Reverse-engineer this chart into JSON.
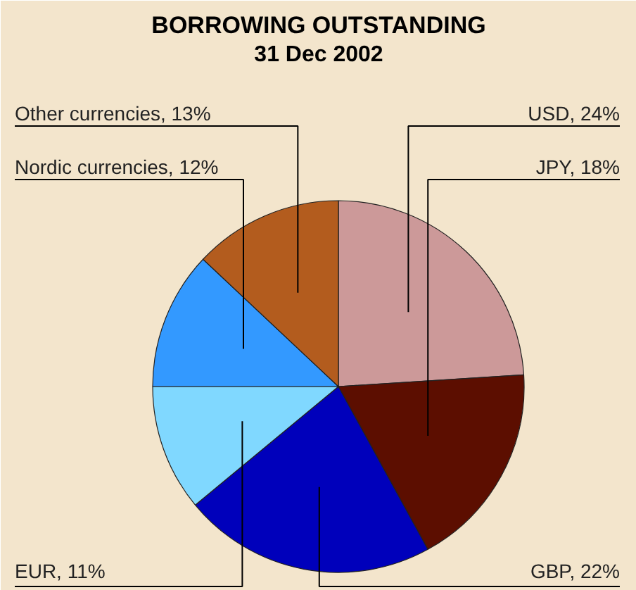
{
  "chart_data": {
    "type": "pie",
    "title": "BORROWING OUTSTANDING",
    "subtitle": "31 Dec 2002",
    "categories": [
      "USD",
      "JPY",
      "GBP",
      "EUR",
      "Nordic currencies",
      "Other currencies"
    ],
    "values": [
      24,
      18,
      22,
      11,
      12,
      13
    ],
    "value_labels": [
      "24%",
      "18%",
      "22%",
      "11%",
      "12%",
      "13%"
    ],
    "colors": [
      "#cc9999",
      "#5c0e00",
      "#0000bb",
      "#80d8ff",
      "#3399ff",
      "#b35c1e"
    ]
  }
}
